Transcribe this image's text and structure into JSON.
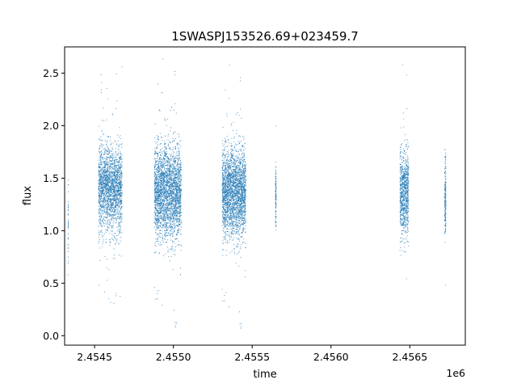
{
  "chart_data": {
    "type": "scatter",
    "title": "1SWASPJ153526.69+023459.7",
    "xlabel": "time",
    "ylabel": "flux",
    "x_offset_label": "1e6",
    "xlim": [
      2454310,
      2456852
    ],
    "ylim": [
      -0.09,
      2.75
    ],
    "x_ticks": [
      {
        "value": 2454500,
        "label": "2.4545"
      },
      {
        "value": 2455000,
        "label": "2.4550"
      },
      {
        "value": 2455500,
        "label": "2.4555"
      },
      {
        "value": 2456000,
        "label": "2.4560"
      },
      {
        "value": 2456500,
        "label": "2.4565"
      }
    ],
    "y_ticks": [
      {
        "value": 0.0,
        "label": "0.0"
      },
      {
        "value": 0.5,
        "label": "0.5"
      },
      {
        "value": 1.0,
        "label": "1.0"
      },
      {
        "value": 1.5,
        "label": "1.5"
      },
      {
        "value": 2.0,
        "label": "2.0"
      },
      {
        "value": 2.5,
        "label": "2.5"
      }
    ],
    "grid": false,
    "marker_color": "#1f77b4",
    "series": [
      {
        "values_description_omitted": true,
        "clusters": [
          {
            "x_center": 2454333,
            "x_width": 2,
            "y_mean": 1.1,
            "y_sd": 0.22,
            "n": 40,
            "y_min": 0.58,
            "y_max": 1.48
          },
          {
            "x_center": 2454600,
            "x_width": 150,
            "y_mean": 1.4,
            "y_sd": 0.2,
            "n": 2200,
            "y_min": 0.2,
            "y_max": 2.66
          },
          {
            "x_center": 2454965,
            "x_width": 170,
            "y_mean": 1.36,
            "y_sd": 0.22,
            "n": 3000,
            "y_min": 0.05,
            "y_max": 2.66
          },
          {
            "x_center": 2455385,
            "x_width": 150,
            "y_mean": 1.36,
            "y_sd": 0.21,
            "n": 2600,
            "y_min": 0.04,
            "y_max": 2.6
          },
          {
            "x_center": 2455650,
            "x_width": 4,
            "y_mean": 1.3,
            "y_sd": 0.16,
            "n": 120,
            "y_min": 0.76,
            "y_max": 2.3
          },
          {
            "x_center": 2456465,
            "x_width": 55,
            "y_mean": 1.35,
            "y_sd": 0.2,
            "n": 900,
            "y_min": 0.48,
            "y_max": 2.6
          },
          {
            "x_center": 2456725,
            "x_width": 8,
            "y_mean": 1.32,
            "y_sd": 0.2,
            "n": 200,
            "y_min": 0.44,
            "y_max": 2.65
          }
        ]
      }
    ]
  }
}
